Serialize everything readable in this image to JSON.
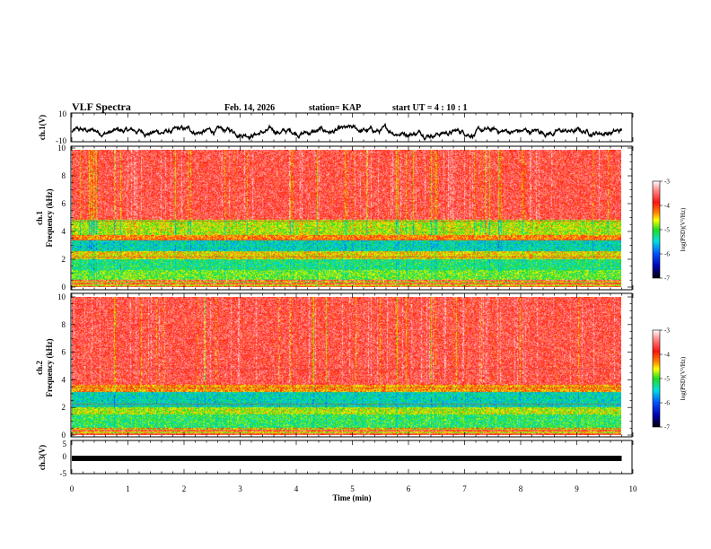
{
  "header": {
    "title": "VLF Spectra",
    "date": "Feb. 14, 2026",
    "station": "station= KAP",
    "start_time": "start  UT =  4 : 10 : 1"
  },
  "chart_data": [
    {
      "type": "line",
      "name": "ch1-waveform",
      "ylabel": "ch.1(V)",
      "ylim": [
        -10,
        10
      ],
      "yticks": [
        "10",
        "-10"
      ],
      "xlim": [
        0,
        10
      ],
      "x_end_min": 9.8,
      "description_range": [
        -9,
        3
      ]
    },
    {
      "type": "heatmap",
      "name": "ch1-spectrogram",
      "ylabel": "ch.1\nFrequency (kHz)",
      "ylabel_lines": [
        "ch.1",
        "Frequency (kHz)"
      ],
      "ylim": [
        0,
        10
      ],
      "yticks": [
        "0",
        "2",
        "4",
        "6",
        "8",
        "10"
      ],
      "xlim": [
        0,
        10
      ],
      "bands_khz": [
        {
          "from": 0.0,
          "to": 0.5,
          "level": "mixed"
        },
        {
          "from": 0.5,
          "to": 1.2,
          "level": "-5"
        },
        {
          "from": 1.2,
          "to": 2.0,
          "level": "-5.3"
        },
        {
          "from": 2.0,
          "to": 2.6,
          "level": "-4.6"
        },
        {
          "from": 2.6,
          "to": 3.4,
          "level": "-5.5"
        },
        {
          "from": 3.4,
          "to": 3.8,
          "level": "-4.3"
        },
        {
          "from": 3.8,
          "to": 4.9,
          "level": "-4.8"
        },
        {
          "from": 4.9,
          "to": 10.0,
          "level": "-3.8"
        }
      ],
      "colorbar": {
        "label": "log(PSD)(V²/Hz)",
        "ticks": [
          "-3",
          "-4",
          "-5",
          "-6",
          "-7"
        ],
        "range": [
          -7,
          -3
        ]
      }
    },
    {
      "type": "heatmap",
      "name": "ch2-spectrogram",
      "ylabel": "ch.2\nFrequency (kHz)",
      "ylabel_lines": [
        "ch.2",
        "Frequency (kHz)"
      ],
      "ylim": [
        0,
        10
      ],
      "yticks": [
        "0",
        "2",
        "4",
        "6",
        "8",
        "10"
      ],
      "xlim": [
        0,
        10
      ],
      "bands_khz": [
        {
          "from": 0.0,
          "to": 0.5,
          "level": "mixed"
        },
        {
          "from": 0.5,
          "to": 1.5,
          "level": "-5.2"
        },
        {
          "from": 1.5,
          "to": 2.0,
          "level": "-4.8"
        },
        {
          "from": 2.0,
          "to": 3.1,
          "level": "-5.5"
        },
        {
          "from": 3.1,
          "to": 3.6,
          "level": "-4.4"
        },
        {
          "from": 3.6,
          "to": 10.0,
          "level": "-3.8"
        }
      ],
      "colorbar": {
        "label": "log(PSD)(V²/Hz)",
        "ticks": [
          "-3",
          "-4",
          "-5",
          "-6",
          "-7"
        ],
        "range": [
          -7,
          -3
        ]
      }
    },
    {
      "type": "line",
      "name": "ch3-waveform",
      "ylabel": "ch.3(V)",
      "ylim": [
        -5,
        5
      ],
      "yticks": [
        "5",
        "0",
        "-5"
      ],
      "xlim": [
        0,
        10
      ],
      "x_end_min": 9.8,
      "level_v": 0
    }
  ],
  "xaxis": {
    "label": "Time  (min)",
    "ticks": [
      "0",
      "1",
      "2",
      "3",
      "4",
      "5",
      "6",
      "7",
      "8",
      "9",
      "10"
    ]
  }
}
